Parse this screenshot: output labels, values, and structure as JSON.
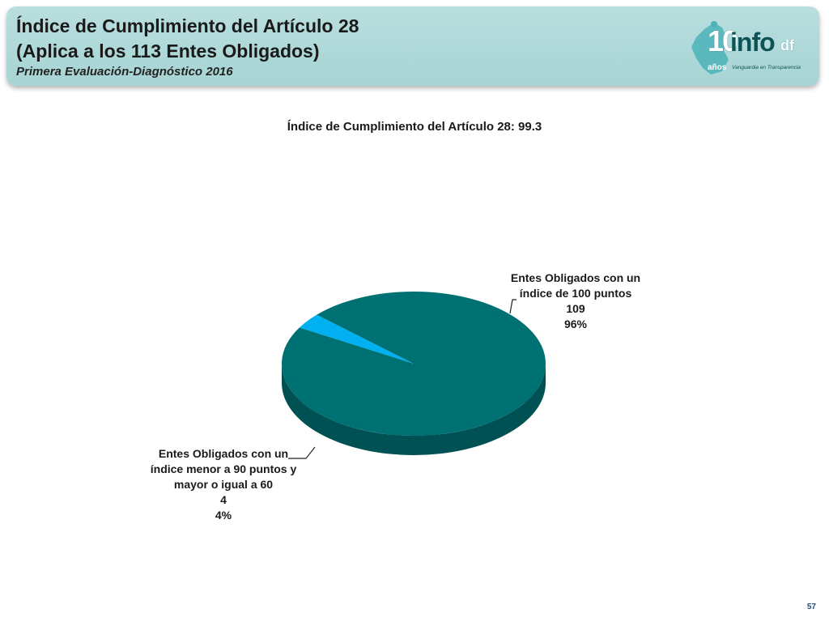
{
  "header": {
    "title_line1": "Índice de Cumplimiento del Artículo 28",
    "title_line2": "(Aplica a los 113 Entes Obligados)",
    "subtitle": "Primera Evaluación-Diagnóstico 2016",
    "logo": {
      "number": "10",
      "brand": "info",
      "suffix": "df",
      "years": "años",
      "tagline": "Vanguardia en Transparencia"
    }
  },
  "chart_data": {
    "type": "pie",
    "title": "Índice de Cumplimiento del Artículo 28: 99.3",
    "slices": [
      {
        "label_lines": [
          "Entes Obligados con un",
          "índice de 100 puntos"
        ],
        "value": 109,
        "value_text": "109",
        "percent_text": "96%",
        "color": "#007173"
      },
      {
        "label_lines": [
          "Entes Obligados con un",
          "índice menor a 90 puntos y",
          "mayor o igual a 60"
        ],
        "value": 4,
        "value_text": "4",
        "percent_text": "4%",
        "color": "#00b0f0"
      }
    ]
  },
  "page_number": "57"
}
